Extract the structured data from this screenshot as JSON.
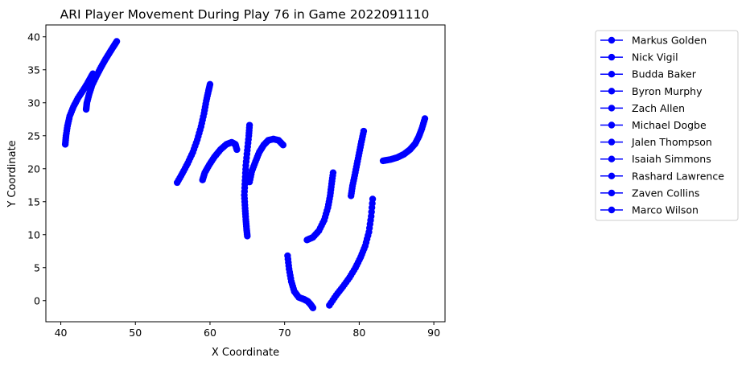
{
  "chart_data": {
    "type": "line",
    "title": "ARI Player Movement During Play 76 in Game 2022091110",
    "xlabel": "X Coordinate",
    "ylabel": "Y Coordinate",
    "xlim": [
      38,
      91.5
    ],
    "ylim": [
      -3.2,
      41.8
    ],
    "xticks": [
      40,
      50,
      60,
      70,
      80,
      90
    ],
    "yticks": [
      0,
      5,
      10,
      15,
      20,
      25,
      30,
      35,
      40
    ],
    "grid": false,
    "legend_position": "outside-right",
    "series_color": "#0000ff",
    "marker": "circle",
    "series": [
      {
        "name": "Markus Golden",
        "x": [
          40.6,
          40.7,
          40.9,
          41.2,
          41.7,
          42.3,
          43.0,
          43.6,
          44.0,
          44.3
        ],
        "y": [
          23.7,
          25.0,
          26.5,
          28.0,
          29.4,
          30.7,
          31.9,
          33.0,
          33.8,
          34.4
        ]
      },
      {
        "name": "Nick Vigil",
        "x": [
          43.4,
          43.5,
          43.8,
          44.2,
          44.8,
          45.4,
          46.0,
          46.6,
          47.1,
          47.5
        ],
        "y": [
          29.0,
          30.0,
          31.3,
          32.7,
          34.1,
          35.4,
          36.6,
          37.7,
          38.6,
          39.3
        ]
      },
      {
        "name": "Budda Baker",
        "x": [
          55.6,
          56.3,
          57.0,
          57.7,
          58.3,
          58.8,
          59.2,
          59.5,
          59.8,
          60.0
        ],
        "y": [
          17.9,
          19.3,
          20.8,
          22.5,
          24.4,
          26.4,
          28.4,
          30.3,
          31.8,
          32.8
        ]
      },
      {
        "name": "Byron Murphy",
        "x": [
          59.0,
          59.3,
          59.9,
          60.6,
          61.4,
          62.2,
          62.9,
          63.4,
          63.6
        ],
        "y": [
          18.3,
          19.4,
          20.6,
          21.8,
          22.9,
          23.7,
          24.0,
          23.7,
          22.9
        ]
      },
      {
        "name": "Zach Allen",
        "x": [
          65.3,
          65.2,
          65.0,
          64.8,
          64.7,
          64.6,
          64.7,
          64.8,
          64.9,
          65.0
        ],
        "y": [
          26.6,
          25.0,
          22.8,
          20.5,
          18.2,
          16.0,
          14.0,
          12.3,
          10.9,
          9.8
        ]
      },
      {
        "name": "Michael Dogbe",
        "x": [
          65.3,
          65.6,
          66.1,
          66.6,
          67.2,
          67.8,
          68.5,
          69.2,
          69.8
        ],
        "y": [
          18.0,
          19.6,
          21.1,
          22.5,
          23.6,
          24.3,
          24.5,
          24.3,
          23.6
        ]
      },
      {
        "name": "Jalen Thompson",
        "x": [
          70.4,
          70.6,
          70.9,
          71.3,
          71.9,
          72.6,
          73.1,
          73.5,
          73.8
        ],
        "y": [
          6.8,
          4.8,
          2.9,
          1.4,
          0.5,
          0.2,
          -0.1,
          -0.6,
          -1.1
        ]
      },
      {
        "name": "Isaiah Simmons",
        "x": [
          73.0,
          73.8,
          74.6,
          75.3,
          75.8,
          76.1,
          76.3,
          76.5
        ],
        "y": [
          9.2,
          9.6,
          10.6,
          12.2,
          14.1,
          15.9,
          17.7,
          19.4
        ]
      },
      {
        "name": "Rashard Lawrence",
        "x": [
          78.9,
          79.1,
          79.4,
          79.7,
          80.0,
          80.3,
          80.6
        ],
        "y": [
          15.9,
          17.4,
          19.0,
          20.7,
          22.4,
          24.1,
          25.7
        ]
      },
      {
        "name": "Zaven Collins",
        "x": [
          83.2,
          84.2,
          85.1,
          86.0,
          86.8,
          87.5,
          88.0,
          88.4,
          88.8
        ],
        "y": [
          21.2,
          21.4,
          21.7,
          22.2,
          22.9,
          23.8,
          24.9,
          26.1,
          27.6
        ]
      },
      {
        "name": "Marco Wilson",
        "x": [
          76.0,
          76.9,
          77.8,
          78.7,
          79.5,
          80.2,
          80.8,
          81.3,
          81.6,
          81.8
        ],
        "y": [
          -0.7,
          0.8,
          2.1,
          3.5,
          5.0,
          6.6,
          8.3,
          10.4,
          12.8,
          15.4
        ]
      }
    ]
  }
}
